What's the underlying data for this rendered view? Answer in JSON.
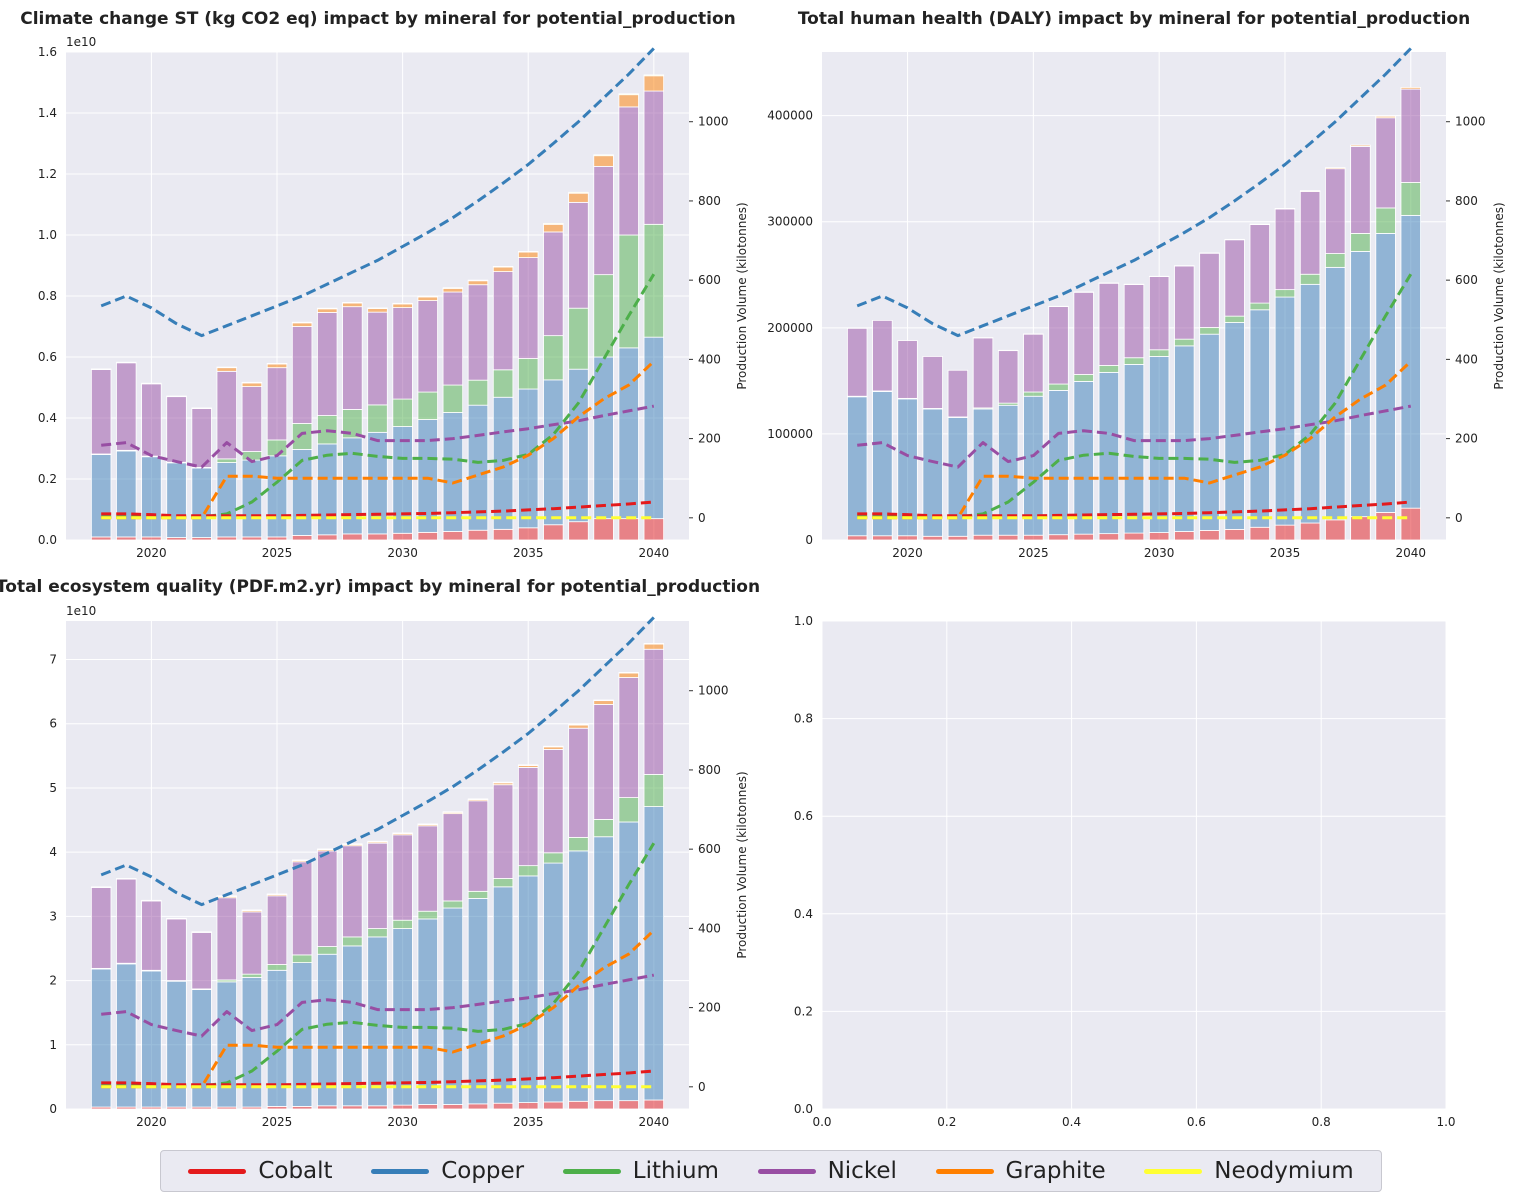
{
  "minerals": [
    {
      "name": "Cobalt",
      "color": "#e41a1c"
    },
    {
      "name": "Copper",
      "color": "#377eb8"
    },
    {
      "name": "Lithium",
      "color": "#4daf4a"
    },
    {
      "name": "Nickel",
      "color": "#984ea3"
    },
    {
      "name": "Graphite",
      "color": "#ff7f00"
    },
    {
      "name": "Neodymium",
      "color": "#ffff33"
    }
  ],
  "chart_data": [
    {
      "type": "bar",
      "title": "Climate change ST (kg CO2 eq) impact by mineral for potential_production",
      "xlabel": "",
      "ylabel": "",
      "y2label": "Production Volume (kilotonnes)",
      "scale_note": "1e10",
      "ylim": [
        0,
        1.6
      ],
      "yticks": [
        "0.0",
        "0.2",
        "0.4",
        "0.6",
        "0.8",
        "1.0",
        "1.2",
        "1.4",
        "1.6"
      ],
      "y2lim": [
        -56,
        1176
      ],
      "y2ticks": [
        "0",
        "200",
        "400",
        "600",
        "800",
        "1000"
      ],
      "xlim": [
        2016.6,
        2041.4
      ],
      "xticks": [
        "2020",
        "2025",
        "2030",
        "2035",
        "2040"
      ],
      "grid": true,
      "categories": [
        2018,
        2019,
        2020,
        2021,
        2022,
        2023,
        2024,
        2025,
        2026,
        2027,
        2028,
        2029,
        2030,
        2031,
        2032,
        2033,
        2034,
        2035,
        2036,
        2037,
        2038,
        2039,
        2040
      ],
      "series": [
        {
          "name": "Cobalt",
          "values": [
            0.01,
            0.01,
            0.01,
            0.008,
            0.008,
            0.01,
            0.01,
            0.01,
            0.015,
            0.017,
            0.02,
            0.02,
            0.022,
            0.025,
            0.028,
            0.032,
            0.035,
            0.04,
            0.05,
            0.06,
            0.07,
            0.07,
            0.07
          ]
        },
        {
          "name": "Copper",
          "values": [
            0.27,
            0.282,
            0.263,
            0.245,
            0.228,
            0.244,
            0.252,
            0.266,
            0.282,
            0.298,
            0.315,
            0.333,
            0.35,
            0.37,
            0.39,
            0.41,
            0.433,
            0.455,
            0.475,
            0.5,
            0.53,
            0.56,
            0.595
          ]
        },
        {
          "name": "Lithium",
          "values": [
            0.002,
            0.002,
            0.002,
            0.002,
            0.002,
            0.012,
            0.028,
            0.052,
            0.085,
            0.093,
            0.093,
            0.09,
            0.09,
            0.09,
            0.09,
            0.082,
            0.09,
            0.1,
            0.145,
            0.2,
            0.27,
            0.37,
            0.37
          ]
        },
        {
          "name": "Nickel",
          "values": [
            0.277,
            0.287,
            0.237,
            0.215,
            0.193,
            0.287,
            0.213,
            0.237,
            0.318,
            0.338,
            0.337,
            0.304,
            0.3,
            0.3,
            0.305,
            0.313,
            0.322,
            0.331,
            0.34,
            0.347,
            0.355,
            0.42,
            0.437
          ]
        },
        {
          "name": "Graphite",
          "values": [
            0.0,
            0.0,
            0.0,
            0.0,
            0.0,
            0.012,
            0.012,
            0.012,
            0.012,
            0.012,
            0.012,
            0.012,
            0.012,
            0.012,
            0.012,
            0.013,
            0.015,
            0.018,
            0.025,
            0.03,
            0.035,
            0.04,
            0.05
          ]
        },
        {
          "name": "Neodymium",
          "values": [
            0.002,
            0.002,
            0.002,
            0.002,
            0.002,
            0.002,
            0.002,
            0.002,
            0.002,
            0.002,
            0.002,
            0.002,
            0.002,
            0.002,
            0.002,
            0.002,
            0.002,
            0.002,
            0.003,
            0.003,
            0.003,
            0.003,
            0.003
          ]
        }
      ]
    },
    {
      "type": "bar",
      "title": "Total human health (DALY) impact by mineral for potential_production",
      "xlabel": "",
      "ylabel": "",
      "y2label": "Production Volume (kilotonnes)",
      "scale_note": "",
      "ylim": [
        0,
        460000
      ],
      "yticks": [
        "0",
        "100000",
        "200000",
        "300000",
        "400000"
      ],
      "y2lim": [
        -56,
        1176
      ],
      "y2ticks": [
        "0",
        "200",
        "400",
        "600",
        "800",
        "1000"
      ],
      "xlim": [
        2016.6,
        2041.4
      ],
      "xticks": [
        "2020",
        "2025",
        "2030",
        "2035",
        "2040"
      ],
      "grid": true,
      "categories": [
        2018,
        2019,
        2020,
        2021,
        2022,
        2023,
        2024,
        2025,
        2026,
        2027,
        2028,
        2029,
        2030,
        2031,
        2032,
        2033,
        2034,
        2035,
        2036,
        2037,
        2038,
        2039,
        2040
      ],
      "series": [
        {
          "name": "Cobalt",
          "values": [
            4000,
            4000,
            4000,
            3500,
            3500,
            4500,
            4500,
            4500,
            5000,
            5500,
            6000,
            6500,
            7000,
            8000,
            9000,
            10000,
            12000,
            14000,
            16000,
            19000,
            22000,
            26000,
            30000
          ]
        },
        {
          "name": "Copper",
          "values": [
            131000,
            136000,
            129000,
            120000,
            112000,
            119000,
            122500,
            131000,
            136000,
            144000,
            152000,
            159000,
            166000,
            175000,
            185000,
            195000,
            205000,
            215000,
            225000,
            238000,
            250000,
            263000,
            276000
          ]
        },
        {
          "name": "Lithium",
          "values": [
            500,
            500,
            500,
            500,
            500,
            1000,
            2000,
            4000,
            6000,
            6500,
            6500,
            6300,
            6300,
            6300,
            6300,
            6000,
            6300,
            7000,
            9500,
            13000,
            17000,
            24000,
            31000
          ]
        },
        {
          "name": "Nickel",
          "values": [
            64000,
            66500,
            54500,
            49000,
            44000,
            66000,
            49500,
            54500,
            73000,
            77500,
            77500,
            69000,
            69000,
            69000,
            70000,
            72000,
            74000,
            76000,
            78000,
            80000,
            82000,
            85000,
            88000
          ]
        },
        {
          "name": "Graphite",
          "values": [
            0,
            0,
            0,
            0,
            0,
            300,
            300,
            300,
            300,
            300,
            300,
            300,
            300,
            300,
            300,
            400,
            500,
            600,
            800,
            1000,
            1200,
            1400,
            1600
          ]
        },
        {
          "name": "Neodymium",
          "values": [
            0,
            0,
            0,
            0,
            0,
            0,
            0,
            0,
            0,
            0,
            0,
            0,
            0,
            0,
            0,
            0,
            0,
            0,
            0,
            0,
            0,
            0,
            0
          ]
        }
      ]
    },
    {
      "type": "bar",
      "title": "Total ecosystem quality (PDF.m2.yr) impact by mineral for potential_production",
      "xlabel": "",
      "ylabel": "",
      "y2label": "Production Volume (kilotonnes)",
      "scale_note": "1e10",
      "ylim": [
        0,
        7.6
      ],
      "yticks": [
        "0",
        "1",
        "2",
        "3",
        "4",
        "5",
        "6",
        "7"
      ],
      "y2lim": [
        -56,
        1176
      ],
      "y2ticks": [
        "0",
        "200",
        "400",
        "600",
        "800",
        "1000"
      ],
      "xlim": [
        2016.6,
        2041.4
      ],
      "xticks": [
        "2020",
        "2025",
        "2030",
        "2035",
        "2040"
      ],
      "grid": true,
      "categories": [
        2018,
        2019,
        2020,
        2021,
        2022,
        2023,
        2024,
        2025,
        2026,
        2027,
        2028,
        2029,
        2030,
        2031,
        2032,
        2033,
        2034,
        2035,
        2036,
        2037,
        2038,
        2039,
        2040
      ],
      "series": [
        {
          "name": "Cobalt",
          "values": [
            0.03,
            0.03,
            0.03,
            0.03,
            0.03,
            0.03,
            0.03,
            0.04,
            0.04,
            0.05,
            0.05,
            0.05,
            0.06,
            0.07,
            0.07,
            0.08,
            0.09,
            0.1,
            0.11,
            0.12,
            0.13,
            0.13,
            0.14
          ]
        },
        {
          "name": "Copper",
          "values": [
            2.15,
            2.23,
            2.12,
            1.96,
            1.83,
            1.95,
            2.02,
            2.12,
            2.24,
            2.36,
            2.49,
            2.63,
            2.75,
            2.89,
            3.06,
            3.2,
            3.37,
            3.53,
            3.72,
            3.9,
            4.11,
            4.34,
            4.57
          ]
        },
        {
          "name": "Lithium",
          "values": [
            0.01,
            0.01,
            0.01,
            0.01,
            0.01,
            0.03,
            0.05,
            0.09,
            0.12,
            0.12,
            0.14,
            0.13,
            0.13,
            0.12,
            0.11,
            0.11,
            0.13,
            0.16,
            0.16,
            0.21,
            0.27,
            0.38,
            0.5
          ]
        },
        {
          "name": "Nickel",
          "values": [
            1.26,
            1.31,
            1.08,
            0.96,
            0.88,
            1.28,
            0.97,
            1.07,
            1.45,
            1.49,
            1.42,
            1.33,
            1.33,
            1.33,
            1.36,
            1.41,
            1.46,
            1.53,
            1.61,
            1.7,
            1.79,
            1.87,
            1.95
          ]
        },
        {
          "name": "Graphite",
          "values": [
            0.0,
            0.0,
            0.0,
            0.0,
            0.0,
            0.02,
            0.02,
            0.02,
            0.02,
            0.02,
            0.02,
            0.02,
            0.02,
            0.02,
            0.02,
            0.02,
            0.03,
            0.03,
            0.04,
            0.05,
            0.06,
            0.07,
            0.08
          ]
        },
        {
          "name": "Neodymium",
          "values": [
            0.01,
            0.01,
            0.01,
            0.01,
            0.01,
            0.01,
            0.01,
            0.01,
            0.01,
            0.01,
            0.01,
            0.01,
            0.01,
            0.01,
            0.01,
            0.01,
            0.01,
            0.01,
            0.01,
            0.01,
            0.01,
            0.01,
            0.01
          ]
        }
      ]
    },
    {
      "type": "line",
      "title": "",
      "xlabel": "",
      "ylabel": "",
      "xlim": [
        0,
        1
      ],
      "ylim": [
        0,
        1
      ],
      "xticks": [
        "0.0",
        "0.2",
        "0.4",
        "0.6",
        "0.8",
        "1.0"
      ],
      "yticks": [
        "0.0",
        "0.2",
        "0.4",
        "0.6",
        "0.8",
        "1.0"
      ],
      "grid": true,
      "series": []
    }
  ],
  "production_volume": {
    "unit": "kilotonnes",
    "years": [
      2018,
      2019,
      2020,
      2021,
      2022,
      2023,
      2024,
      2025,
      2026,
      2027,
      2028,
      2029,
      2030,
      2031,
      2032,
      2033,
      2034,
      2035,
      2036,
      2037,
      2038,
      2039,
      2040
    ],
    "series": [
      {
        "name": "Cobalt",
        "values": [
          10,
          10,
          8,
          5,
          5,
          5,
          5,
          5,
          6,
          7,
          8,
          9,
          10,
          11,
          13,
          15,
          17,
          20,
          23,
          27,
          31,
          35,
          40
        ]
      },
      {
        "name": "Copper",
        "values": [
          535,
          560,
          530,
          490,
          460,
          485,
          510,
          535,
          560,
          590,
          620,
          650,
          685,
          720,
          758,
          800,
          845,
          892,
          945,
          1000,
          1060,
          1120,
          1185
        ]
      },
      {
        "name": "Lithium",
        "values": [
          2,
          2,
          2,
          2,
          2,
          10,
          40,
          90,
          145,
          158,
          163,
          155,
          150,
          150,
          148,
          140,
          145,
          160,
          210,
          290,
          400,
          510,
          615
        ]
      },
      {
        "name": "Nickel",
        "values": [
          183,
          190,
          157,
          142,
          128,
          190,
          142,
          157,
          213,
          220,
          213,
          195,
          195,
          195,
          200,
          208,
          217,
          225,
          235,
          245,
          258,
          270,
          282
        ]
      },
      {
        "name": "Graphite",
        "values": [
          0,
          0,
          0,
          0,
          0,
          105,
          105,
          100,
          100,
          100,
          100,
          100,
          100,
          100,
          88,
          108,
          128,
          158,
          200,
          255,
          300,
          335,
          395
        ]
      },
      {
        "name": "Neodymium",
        "values": [
          0,
          0,
          0,
          0,
          0,
          0,
          0,
          0,
          0,
          0,
          0,
          0,
          0,
          0,
          0,
          0,
          0,
          0,
          0,
          0,
          0,
          0,
          0
        ]
      }
    ]
  }
}
